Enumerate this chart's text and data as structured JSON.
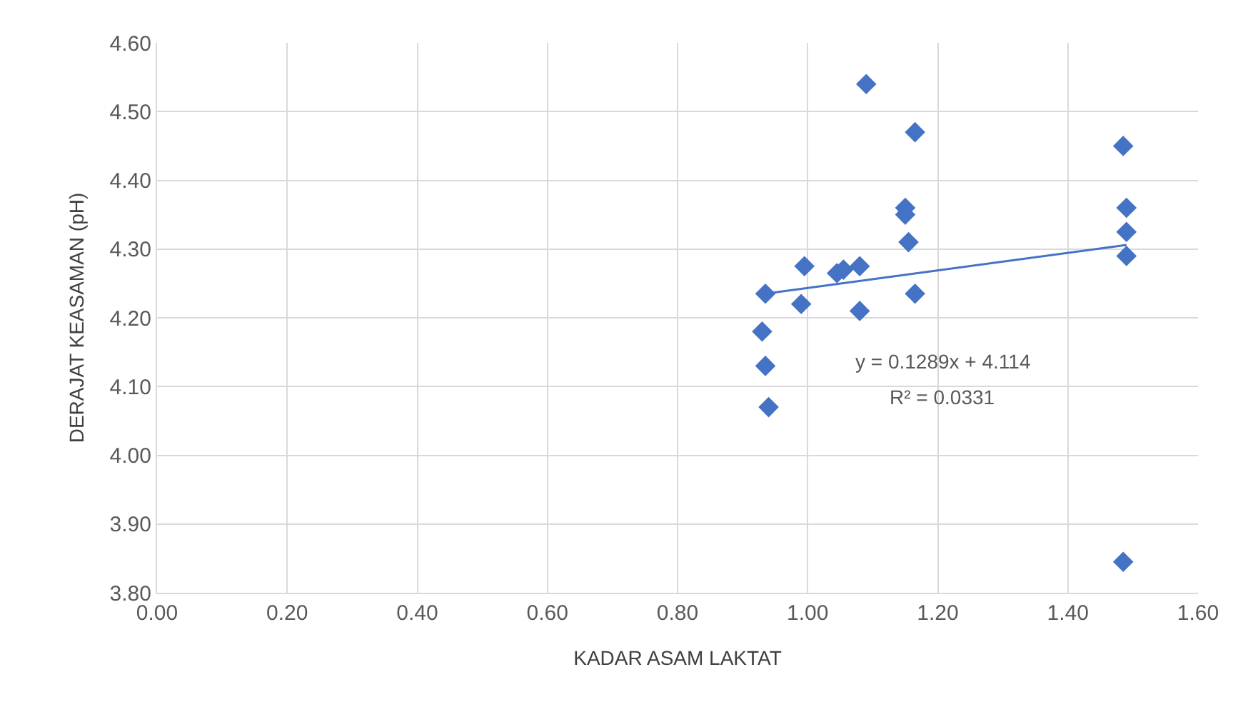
{
  "chart_data": {
    "type": "scatter",
    "xlabel": "KADAR ASAM LAKTAT",
    "ylabel": "DERAJAT KEASAMAN (pH)",
    "xlim": [
      0,
      1.6
    ],
    "xticks": [
      {
        "value": 0,
        "label": "0.00"
      },
      {
        "value": 0.2,
        "label": "0.20"
      },
      {
        "value": 0.4,
        "label": "0.40"
      },
      {
        "value": 0.6,
        "label": "0.60"
      },
      {
        "value": 0.8,
        "label": "0.80"
      },
      {
        "value": 1,
        "label": "1.00"
      },
      {
        "value": 1.2,
        "label": "1.20"
      },
      {
        "value": 1.4,
        "label": "1.40"
      },
      {
        "value": 1.6,
        "label": "1.60"
      }
    ],
    "ylim": [
      3.8,
      4.6
    ],
    "yticks": [
      {
        "value": 3.8,
        "label": "3.80"
      },
      {
        "value": 3.9,
        "label": "3.90"
      },
      {
        "value": 4,
        "label": "4.00"
      },
      {
        "value": 4.1,
        "label": "4.10"
      },
      {
        "value": 4.2,
        "label": "4.20"
      },
      {
        "value": 4.3,
        "label": "4.30"
      },
      {
        "value": 4.4,
        "label": "4.40"
      },
      {
        "value": 4.5,
        "label": "4.50"
      },
      {
        "value": 4.6,
        "label": "4.60"
      }
    ],
    "grid": true,
    "marker": "diamond",
    "series": [
      {
        "color": "#4472c4",
        "x": [
          1.09,
          1.165,
          1.485,
          1.49,
          1.49,
          1.49,
          1.485,
          1.15,
          1.15,
          1.155,
          1.165,
          1.08,
          1.08,
          1.055,
          1.045,
          0.995,
          0.935,
          0.93,
          0.935,
          0.94,
          0.99
        ],
        "values": [
          4.54,
          4.47,
          4.45,
          4.36,
          4.325,
          4.29,
          3.845,
          4.36,
          4.35,
          4.31,
          4.235,
          4.275,
          4.21,
          4.27,
          4.265,
          4.275,
          4.235,
          4.18,
          4.13,
          4.07,
          4.22
        ]
      },
      {
        "type": "line",
        "color": "#4472c4",
        "x": [
          0.935,
          1.49
        ],
        "values": [
          4.235,
          4.306
        ],
        "marker": "none",
        "line_style": "solid"
      }
    ],
    "annotations": [
      "y = 0.1289x + 4.114",
      "R² = 0.0331"
    ]
  }
}
